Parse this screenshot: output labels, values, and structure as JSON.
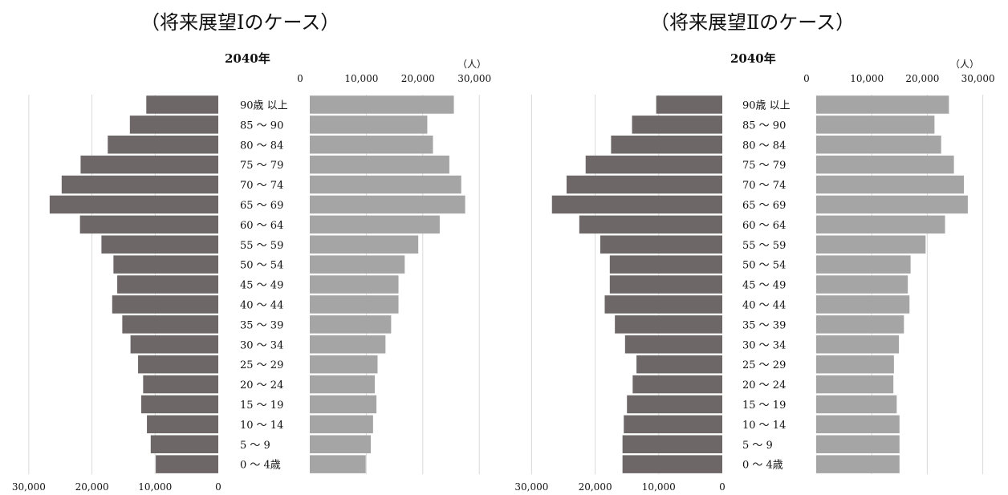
{
  "titles": [
    "（将来展望Ⅰのケース）",
    "（将来展望Ⅱのケース）"
  ],
  "chart_data": [
    {
      "type": "bar",
      "subtype": "population-pyramid",
      "title": "2040年",
      "unit": "（人）",
      "axis_ticks": [
        "0",
        "10,000",
        "20,000",
        "30,000"
      ],
      "xlim": [
        0,
        30000
      ],
      "categories": [
        "90歳 以上",
        "85 ～ 90",
        "80 ～ 84",
        "75 ～ 79",
        "70 ～ 74",
        "65 ～ 69",
        "60 ～ 64",
        "55 ～ 59",
        "50 ～ 54",
        "45 ～ 49",
        "40 ～ 44",
        "35 ～ 39",
        "30 ～ 34",
        "25 ～ 29",
        "20 ～ 24",
        "15 ～ 19",
        "10 ～ 14",
        "5 ～ 9",
        "0 ～ 4歳"
      ],
      "series": [
        {
          "side": "left",
          "color": "#6e6768",
          "values": [
            11400,
            14000,
            17500,
            21800,
            24800,
            26700,
            21900,
            18500,
            16600,
            16000,
            16800,
            15200,
            13900,
            12700,
            11900,
            12200,
            11300,
            10700,
            9900
          ]
        },
        {
          "side": "right",
          "color": "#a5a5a5",
          "values": [
            25500,
            20800,
            21800,
            24700,
            26800,
            27500,
            23000,
            19200,
            16800,
            15700,
            15700,
            14400,
            13400,
            12000,
            11500,
            11800,
            11200,
            10800,
            9900
          ]
        }
      ]
    },
    {
      "type": "bar",
      "subtype": "population-pyramid",
      "title": "2040年",
      "unit": "（人）",
      "axis_ticks": [
        "0",
        "10,000",
        "20,000",
        "30,000"
      ],
      "xlim": [
        0,
        30000
      ],
      "categories": [
        "90歳 以上",
        "85 ～ 90",
        "80 ～ 84",
        "75 ～ 79",
        "70 ～ 74",
        "65 ～ 69",
        "60 ～ 64",
        "55 ～ 59",
        "50 ～ 54",
        "45 ～ 49",
        "40 ～ 44",
        "35 ～ 39",
        "30 ～ 34",
        "25 ～ 29",
        "20 ～ 24",
        "15 ～ 19",
        "10 ～ 14",
        "5 ～ 9",
        "0 ～ 4歳"
      ],
      "series": [
        {
          "side": "left",
          "color": "#6e6768",
          "values": [
            10400,
            14200,
            17500,
            21500,
            24500,
            26800,
            22500,
            19200,
            17700,
            17700,
            18500,
            16900,
            15300,
            13500,
            14100,
            15000,
            15500,
            15700,
            15700
          ]
        },
        {
          "side": "right",
          "color": "#a5a5a5",
          "values": [
            23900,
            21300,
            22500,
            24800,
            26600,
            27300,
            23200,
            19700,
            17000,
            16500,
            16800,
            15800,
            14900,
            14000,
            13900,
            14500,
            15000,
            15000,
            15000
          ]
        }
      ]
    }
  ]
}
